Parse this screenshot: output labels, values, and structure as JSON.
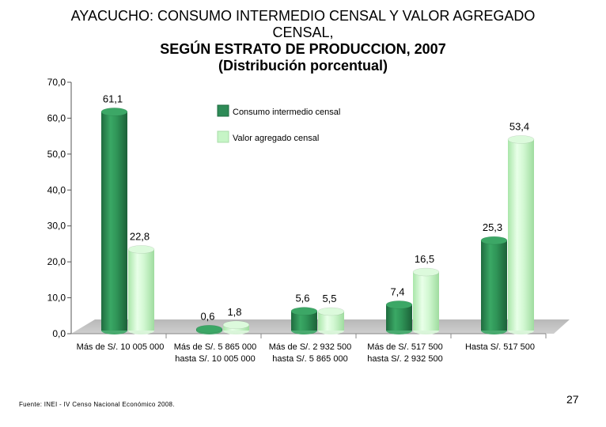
{
  "title_lines": [
    "AYACUCHO: CONSUMO INTERMEDIO CENSAL Y VALOR AGREGADO",
    "CENSAL,",
    "SEGÚN ESTRATO DE PRODUCCION, 2007",
    "(Distribución porcentual)"
  ],
  "chart_data": {
    "type": "bar",
    "categories": [
      [
        "Más de S/. 10 005 000"
      ],
      [
        "Más de S/. 5 865 000",
        "hasta  S/. 10 005 000"
      ],
      [
        "Más de S/. 2 932 500",
        "hasta  S/. 5 865 000"
      ],
      [
        "Más de S/. 517 500",
        "hasta S/. 2 932 500"
      ],
      [
        "Hasta S/. 517 500"
      ]
    ],
    "series": [
      {
        "name": "Consumo intermedio censal",
        "values": [
          61.1,
          0.6,
          5.6,
          7.4,
          25.3
        ],
        "labels": [
          "61,1",
          "0,6",
          "5,6",
          "7,4",
          "25,3"
        ],
        "color": "#2e8b57"
      },
      {
        "name": "Valor agregado censal",
        "values": [
          22.8,
          1.8,
          5.5,
          16.5,
          53.4
        ],
        "labels": [
          "22,8",
          "1,8",
          "5,5",
          "16,5",
          "53,4"
        ],
        "color": "#c6f5c6"
      }
    ],
    "yticks": [
      "0,0",
      "10,0",
      "20,0",
      "30,0",
      "40,0",
      "50,0",
      "60,0",
      "70,0"
    ],
    "ylim": [
      0,
      70
    ],
    "legend_position": "top-center",
    "grid": false
  },
  "footer": {
    "source": "Fuente: INEI - IV Censo Nacional Económico 2008.",
    "page_number": "27"
  }
}
